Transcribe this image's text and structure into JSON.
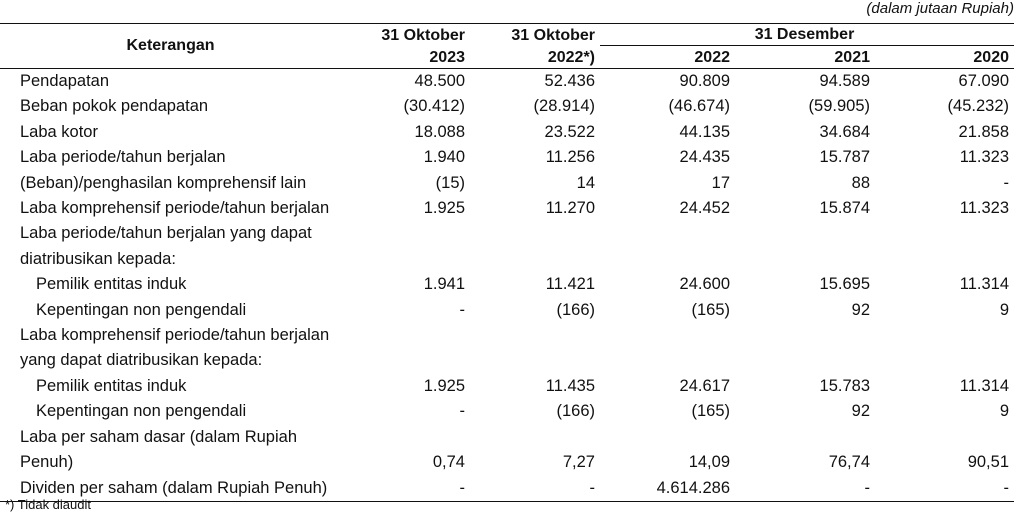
{
  "unit_note": "(dalam jutaan Rupiah)",
  "header": {
    "keterangan": "Keterangan",
    "col1_line1": "31 Oktober",
    "col1_line2": "2023",
    "col2_line1": "31 Oktober",
    "col2_line2": "2022*)",
    "desember": "31 Desember",
    "y2022": "2022",
    "y2021": "2021",
    "y2020": "2020"
  },
  "rows": [
    {
      "label": "Pendapatan",
      "indent": false,
      "values": [
        "48.500",
        "52.436",
        "90.809",
        "94.589",
        "67.090"
      ]
    },
    {
      "label": "Beban pokok pendapatan",
      "indent": false,
      "values": [
        "(30.412)",
        "(28.914)",
        "(46.674)",
        "(59.905)",
        "(45.232)"
      ]
    },
    {
      "label": "Laba kotor",
      "indent": false,
      "values": [
        "18.088",
        "23.522",
        "44.135",
        "34.684",
        "21.858"
      ]
    },
    {
      "label": "Laba periode/tahun berjalan",
      "indent": false,
      "values": [
        "1.940",
        "11.256",
        "24.435",
        "15.787",
        "11.323"
      ]
    },
    {
      "label": "(Beban)/penghasilan komprehensif lain",
      "indent": false,
      "values": [
        "(15)",
        "14",
        "17",
        "88",
        "-"
      ]
    },
    {
      "label": "Laba komprehensif periode/tahun berjalan",
      "indent": false,
      "values": [
        "1.925",
        "11.270",
        "24.452",
        "15.874",
        "11.323"
      ]
    },
    {
      "label": "Laba periode/tahun berjalan yang dapat",
      "indent": false,
      "values": [
        "",
        "",
        "",
        "",
        ""
      ]
    },
    {
      "label": "diatribusikan kepada:",
      "indent": false,
      "values": [
        "",
        "",
        "",
        "",
        ""
      ]
    },
    {
      "label": "Pemilik entitas induk",
      "indent": true,
      "values": [
        "1.941",
        "11.421",
        "24.600",
        "15.695",
        "11.314"
      ]
    },
    {
      "label": "Kepentingan non pengendali",
      "indent": true,
      "values": [
        "-",
        "(166)",
        "(165)",
        "92",
        "9"
      ]
    },
    {
      "label": "Laba komprehensif periode/tahun berjalan",
      "indent": false,
      "values": [
        "",
        "",
        "",
        "",
        ""
      ]
    },
    {
      "label": "yang dapat diatribusikan kepada:",
      "indent": false,
      "values": [
        "",
        "",
        "",
        "",
        ""
      ]
    },
    {
      "label": "Pemilik entitas induk",
      "indent": true,
      "values": [
        "1.925",
        "11.435",
        "24.617",
        "15.783",
        "11.314"
      ]
    },
    {
      "label": "Kepentingan non pengendali",
      "indent": true,
      "values": [
        "-",
        "(166)",
        "(165)",
        "92",
        "9"
      ]
    },
    {
      "label": "Laba per saham dasar (dalam Rupiah",
      "indent": false,
      "values": [
        "",
        "",
        "",
        "",
        ""
      ]
    },
    {
      "label": "Penuh)",
      "indent": false,
      "values": [
        "0,74",
        "7,27",
        "14,09",
        "76,74",
        "90,51"
      ]
    },
    {
      "label": "Dividen per saham (dalam Rupiah Penuh)",
      "indent": false,
      "values": [
        "-",
        "-",
        "4.614.286",
        "-",
        "-"
      ]
    }
  ],
  "footnote": "*) Tidak diaudit"
}
